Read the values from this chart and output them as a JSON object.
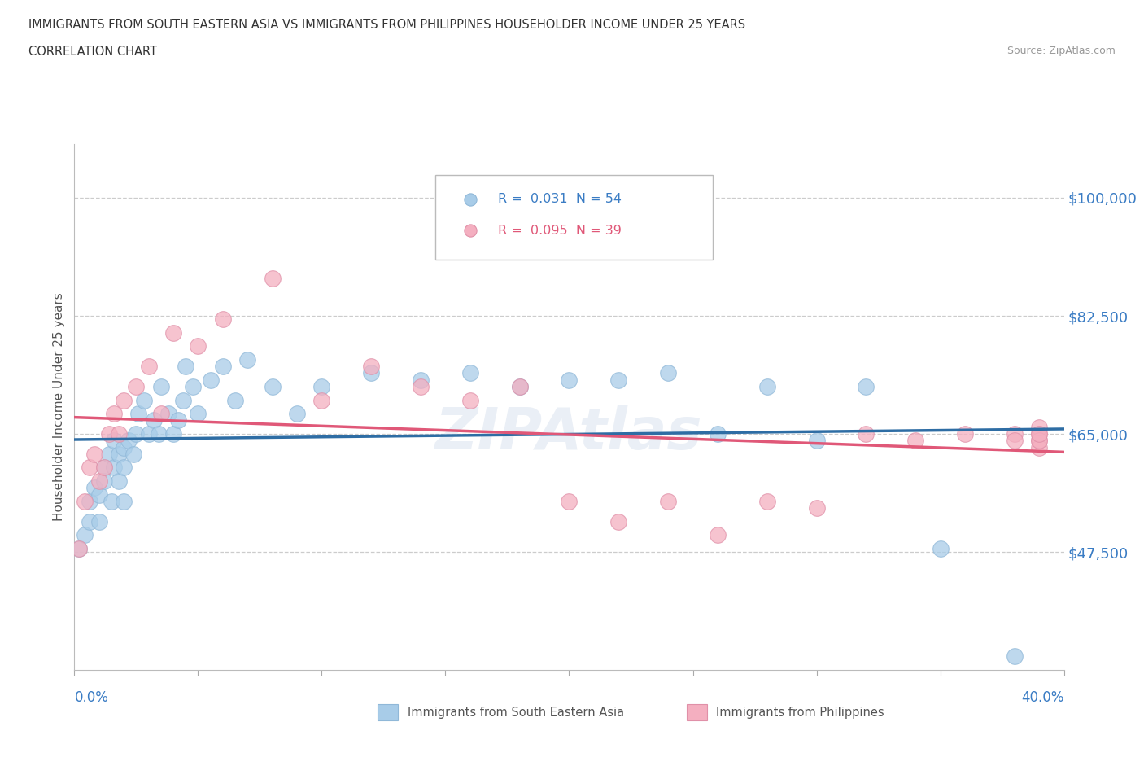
{
  "title_line1": "IMMIGRANTS FROM SOUTH EASTERN ASIA VS IMMIGRANTS FROM PHILIPPINES HOUSEHOLDER INCOME UNDER 25 YEARS",
  "title_line2": "CORRELATION CHART",
  "source_text": "Source: ZipAtlas.com",
  "ylabel": "Householder Income Under 25 years",
  "ytick_labels": [
    "$47,500",
    "$65,000",
    "$82,500",
    "$100,000"
  ],
  "ytick_values": [
    47500,
    65000,
    82500,
    100000
  ],
  "xmin": 0.0,
  "xmax": 0.4,
  "ymin": 30000,
  "ymax": 108000,
  "color_sea": "#a8cce8",
  "color_phi": "#f4afc0",
  "color_sea_line": "#2e6da4",
  "color_phi_line": "#e05878",
  "watermark": "ZIPAtlas",
  "sea_x": [
    0.002,
    0.004,
    0.006,
    0.006,
    0.008,
    0.01,
    0.01,
    0.012,
    0.012,
    0.014,
    0.015,
    0.016,
    0.016,
    0.018,
    0.018,
    0.02,
    0.02,
    0.02,
    0.022,
    0.024,
    0.025,
    0.026,
    0.028,
    0.03,
    0.032,
    0.034,
    0.035,
    0.038,
    0.04,
    0.042,
    0.044,
    0.045,
    0.048,
    0.05,
    0.055,
    0.06,
    0.065,
    0.07,
    0.08,
    0.09,
    0.1,
    0.12,
    0.14,
    0.16,
    0.18,
    0.2,
    0.22,
    0.24,
    0.26,
    0.28,
    0.3,
    0.32,
    0.35,
    0.38
  ],
  "sea_y": [
    48000,
    50000,
    52000,
    55000,
    57000,
    52000,
    56000,
    58000,
    60000,
    62000,
    55000,
    60000,
    64000,
    58000,
    62000,
    55000,
    60000,
    63000,
    64000,
    62000,
    65000,
    68000,
    70000,
    65000,
    67000,
    65000,
    72000,
    68000,
    65000,
    67000,
    70000,
    75000,
    72000,
    68000,
    73000,
    75000,
    70000,
    76000,
    72000,
    68000,
    72000,
    74000,
    73000,
    74000,
    72000,
    73000,
    73000,
    74000,
    65000,
    72000,
    64000,
    72000,
    48000,
    32000
  ],
  "phi_x": [
    0.002,
    0.004,
    0.006,
    0.008,
    0.01,
    0.012,
    0.014,
    0.016,
    0.018,
    0.02,
    0.025,
    0.03,
    0.035,
    0.04,
    0.05,
    0.06,
    0.08,
    0.1,
    0.12,
    0.14,
    0.16,
    0.18,
    0.2,
    0.22,
    0.24,
    0.26,
    0.28,
    0.3,
    0.32,
    0.34,
    0.36,
    0.38,
    0.38,
    0.39,
    0.39,
    0.39,
    0.39,
    0.39,
    0.39
  ],
  "phi_y": [
    48000,
    55000,
    60000,
    62000,
    58000,
    60000,
    65000,
    68000,
    65000,
    70000,
    72000,
    75000,
    68000,
    80000,
    78000,
    82000,
    88000,
    70000,
    75000,
    72000,
    70000,
    72000,
    55000,
    52000,
    55000,
    50000,
    55000,
    54000,
    65000,
    64000,
    65000,
    65000,
    64000,
    64000,
    65000,
    63000,
    66000,
    64000,
    65000
  ]
}
